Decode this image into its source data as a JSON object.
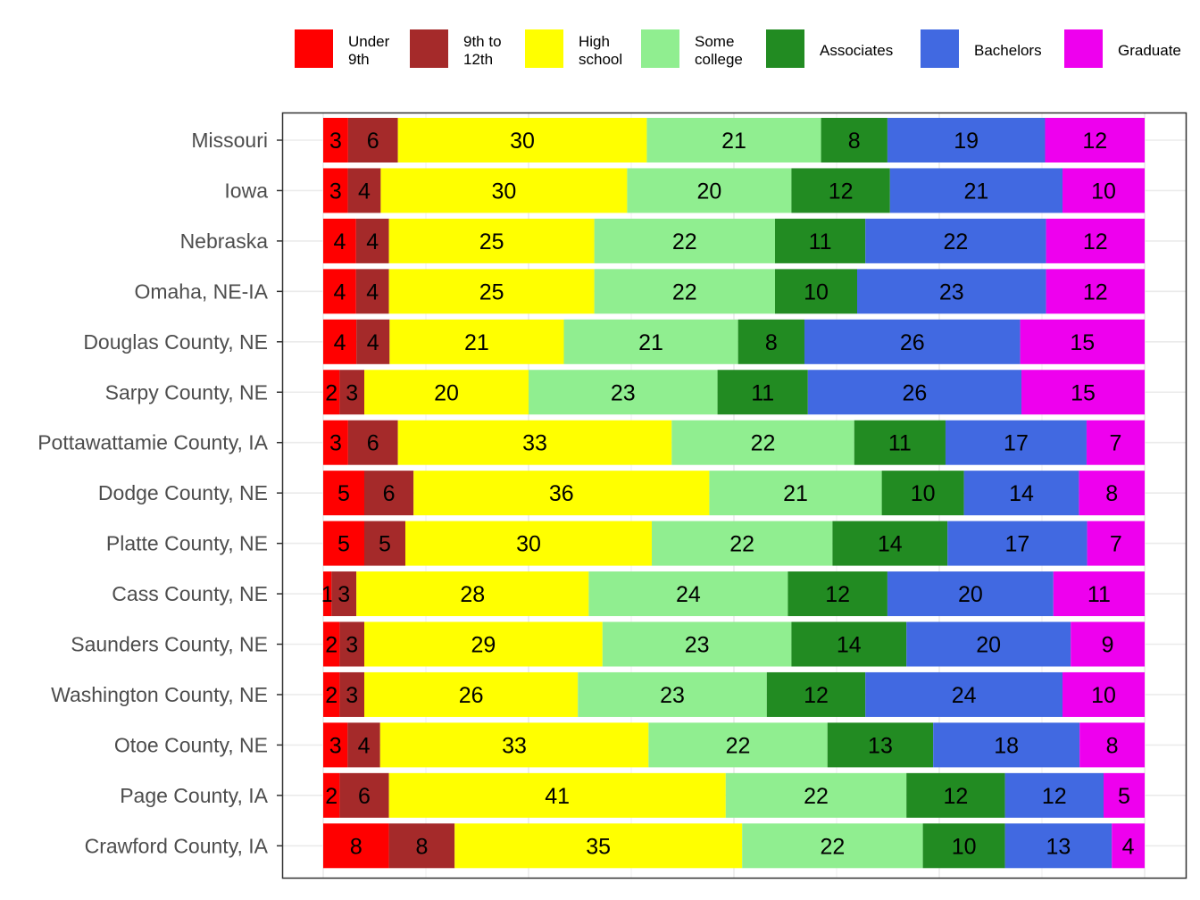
{
  "chart_data": {
    "type": "bar",
    "orientation": "horizontal",
    "stacked": true,
    "percent_stacked": true,
    "legend_position": "top",
    "grid": true,
    "title": "",
    "xlabel": "",
    "ylabel": "",
    "categories": [
      "Missouri",
      "Iowa",
      "Nebraska",
      "Omaha, NE-IA",
      "Douglas County, NE",
      "Sarpy County, NE",
      "Pottawattamie County, IA",
      "Dodge County, NE",
      "Platte County, NE",
      "Cass County, NE",
      "Saunders County, NE",
      "Washington County, NE",
      "Otoe County, NE",
      "Page County, IA",
      "Crawford County, IA"
    ],
    "series": [
      {
        "name": "Under\n9th",
        "color": "#ff0000",
        "values": [
          3,
          3,
          4,
          4,
          4,
          2,
          3,
          5,
          5,
          1,
          2,
          2,
          3,
          2,
          8
        ]
      },
      {
        "name": "9th to\n12th",
        "color": "#a52a2a",
        "values": [
          6,
          4,
          4,
          4,
          4,
          3,
          6,
          6,
          5,
          3,
          3,
          3,
          4,
          6,
          8
        ]
      },
      {
        "name": "High\nschool",
        "color": "#ffff00",
        "values": [
          30,
          30,
          25,
          25,
          21,
          20,
          33,
          36,
          30,
          28,
          29,
          26,
          33,
          41,
          35
        ]
      },
      {
        "name": "Some\ncollege",
        "color": "#90ee90",
        "values": [
          21,
          20,
          22,
          22,
          21,
          23,
          22,
          21,
          22,
          24,
          23,
          23,
          22,
          22,
          22
        ]
      },
      {
        "name": "Associates",
        "color": "#228b22",
        "values": [
          8,
          12,
          11,
          10,
          8,
          11,
          11,
          10,
          14,
          12,
          14,
          12,
          13,
          12,
          10
        ]
      },
      {
        "name": "Bachelors",
        "color": "#4169e1",
        "values": [
          19,
          21,
          22,
          23,
          26,
          26,
          17,
          14,
          17,
          20,
          20,
          24,
          18,
          12,
          13
        ]
      },
      {
        "name": "Graduate",
        "color": "#ee00ee",
        "values": [
          12,
          10,
          12,
          12,
          15,
          15,
          7,
          8,
          7,
          11,
          9,
          10,
          8,
          5,
          4
        ]
      }
    ]
  }
}
